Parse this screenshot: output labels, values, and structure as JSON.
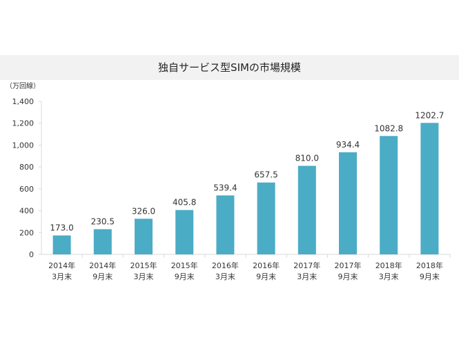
{
  "chart_data": {
    "type": "bar",
    "title": "独自サービス型SIMの市場規模",
    "unit_label": "（万回線）",
    "categories": [
      [
        "2014年",
        "3月末"
      ],
      [
        "2014年",
        "9月末"
      ],
      [
        "2015年",
        "3月末"
      ],
      [
        "2015年",
        "9月末"
      ],
      [
        "2016年",
        "3月末"
      ],
      [
        "2016年",
        "9月末"
      ],
      [
        "2017年",
        "3月末"
      ],
      [
        "2017年",
        "9月末"
      ],
      [
        "2018年",
        "3月末"
      ],
      [
        "2018年",
        "9月末"
      ]
    ],
    "values": [
      173.0,
      230.5,
      326.0,
      405.8,
      539.4,
      657.5,
      810.0,
      934.4,
      1082.8,
      1202.7
    ],
    "value_labels": [
      "173.0",
      "230.5",
      "326.0",
      "405.8",
      "539.4",
      "657.5",
      "810.0",
      "934.4",
      "1082.8",
      "1202.7"
    ],
    "ylim": [
      0,
      1400
    ],
    "y_ticks": [
      0,
      200,
      400,
      600,
      800,
      1000,
      1200,
      1400
    ],
    "y_tick_labels": [
      "0",
      "200",
      "400",
      "600",
      "800",
      "1,000",
      "1,200",
      "1,400"
    ],
    "grid": false,
    "legend": "none",
    "bar_color": "#4bacc6"
  }
}
